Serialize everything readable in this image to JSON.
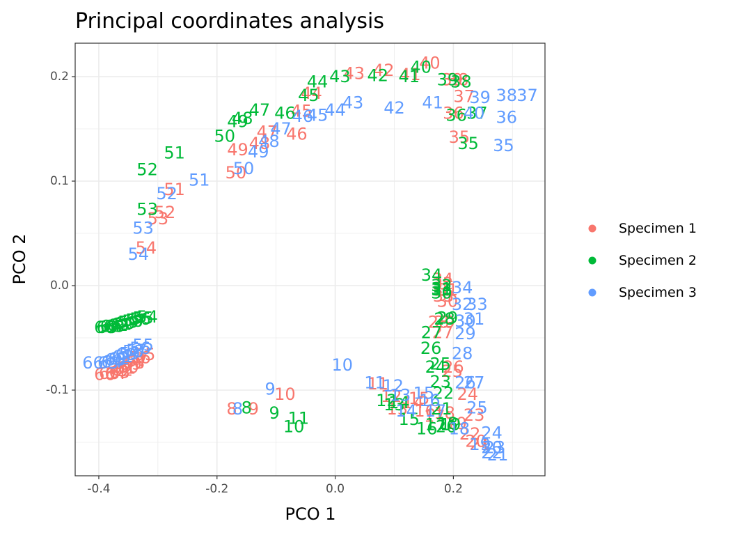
{
  "chart_data": {
    "type": "scatter",
    "marker": "text-label",
    "title": "Principal coordinates analysis",
    "xlabel": "PCO 1",
    "ylabel": "PCO 2",
    "xlim": [
      -0.44,
      0.355
    ],
    "ylim": [
      -0.182,
      0.232
    ],
    "x_ticks": [
      -0.4,
      -0.2,
      0.0,
      0.2
    ],
    "x_tick_labels": [
      "-0.4",
      "-0.2",
      "0.0",
      "0.2"
    ],
    "y_ticks": [
      -0.1,
      0.0,
      0.1,
      0.2
    ],
    "y_tick_labels": [
      "-0.1",
      "0.0",
      "0.1",
      "0.2"
    ],
    "grid": true,
    "legend_position": "right",
    "series": [
      {
        "name": "Specimen 1",
        "color": "#F8766D",
        "points": [
          {
            "label": "8",
            "x": -0.175,
            "y": -0.118
          },
          {
            "label": "9",
            "x": -0.138,
            "y": -0.118
          },
          {
            "label": "10",
            "x": -0.085,
            "y": -0.104
          },
          {
            "label": "11",
            "x": 0.072,
            "y": -0.094
          },
          {
            "label": "12",
            "x": 0.095,
            "y": -0.106
          },
          {
            "label": "13",
            "x": 0.105,
            "y": -0.118
          },
          {
            "label": "14",
            "x": 0.132,
            "y": -0.112
          },
          {
            "label": "15",
            "x": 0.142,
            "y": -0.108
          },
          {
            "label": "16",
            "x": 0.152,
            "y": -0.12
          },
          {
            "label": "17",
            "x": 0.168,
            "y": -0.125
          },
          {
            "label": "18",
            "x": 0.185,
            "y": -0.122
          },
          {
            "label": "19",
            "x": 0.205,
            "y": -0.132
          },
          {
            "label": "20",
            "x": 0.238,
            "y": -0.149
          },
          {
            "label": "21",
            "x": 0.245,
            "y": -0.152
          },
          {
            "label": "22",
            "x": 0.228,
            "y": -0.142
          },
          {
            "label": "23",
            "x": 0.235,
            "y": -0.124
          },
          {
            "label": "24",
            "x": 0.224,
            "y": -0.104
          },
          {
            "label": "25",
            "x": 0.198,
            "y": -0.082
          },
          {
            "label": "26",
            "x": 0.2,
            "y": -0.078
          },
          {
            "label": "27",
            "x": 0.182,
            "y": -0.045
          },
          {
            "label": "28",
            "x": 0.175,
            "y": -0.035
          },
          {
            "label": "29",
            "x": 0.185,
            "y": -0.035
          },
          {
            "label": "30",
            "x": 0.19,
            "y": -0.015
          },
          {
            "label": "31",
            "x": 0.19,
            "y": -0.004
          },
          {
            "label": "32",
            "x": 0.182,
            "y": 0.002
          },
          {
            "label": "33",
            "x": 0.183,
            "y": -0.01
          },
          {
            "label": "34",
            "x": 0.182,
            "y": 0.006
          },
          {
            "label": "35",
            "x": 0.21,
            "y": 0.142
          },
          {
            "label": "36",
            "x": 0.2,
            "y": 0.165
          },
          {
            "label": "37",
            "x": 0.218,
            "y": 0.181
          },
          {
            "label": "38",
            "x": 0.208,
            "y": 0.197
          },
          {
            "label": "39",
            "x": 0.198,
            "y": 0.197
          },
          {
            "label": "40",
            "x": 0.16,
            "y": 0.213
          },
          {
            "label": "41",
            "x": 0.127,
            "y": 0.202
          },
          {
            "label": "42",
            "x": 0.082,
            "y": 0.206
          },
          {
            "label": "43",
            "x": 0.032,
            "y": 0.203
          },
          {
            "label": "44",
            "x": -0.04,
            "y": 0.184
          },
          {
            "label": "45",
            "x": -0.057,
            "y": 0.167
          },
          {
            "label": "46",
            "x": -0.065,
            "y": 0.145
          },
          {
            "label": "47",
            "x": -0.115,
            "y": 0.147
          },
          {
            "label": "48",
            "x": -0.128,
            "y": 0.136
          },
          {
            "label": "49",
            "x": -0.165,
            "y": 0.13
          },
          {
            "label": "50",
            "x": -0.168,
            "y": 0.108
          },
          {
            "label": "51",
            "x": -0.272,
            "y": 0.092
          },
          {
            "label": "52",
            "x": -0.288,
            "y": 0.07
          },
          {
            "label": "53",
            "x": -0.3,
            "y": 0.064
          },
          {
            "label": "54",
            "x": -0.32,
            "y": 0.036
          },
          {
            "label": "55",
            "x": -0.322,
            "y": -0.066
          },
          {
            "label": "56",
            "x": -0.33,
            "y": -0.069
          },
          {
            "label": "57",
            "x": -0.335,
            "y": -0.072
          },
          {
            "label": "58",
            "x": -0.34,
            "y": -0.074
          },
          {
            "label": "59",
            "x": -0.345,
            "y": -0.075
          },
          {
            "label": "60",
            "x": -0.35,
            "y": -0.078
          },
          {
            "label": "61",
            "x": -0.355,
            "y": -0.079
          },
          {
            "label": "62",
            "x": -0.36,
            "y": -0.081
          },
          {
            "label": "63",
            "x": -0.365,
            "y": -0.083
          },
          {
            "label": "64",
            "x": -0.372,
            "y": -0.084
          },
          {
            "label": "65",
            "x": -0.382,
            "y": -0.084
          },
          {
            "label": "66",
            "x": -0.39,
            "y": -0.085
          }
        ]
      },
      {
        "name": "Specimen 2",
        "color": "#00BA38",
        "points": [
          {
            "label": "8",
            "x": -0.15,
            "y": -0.117
          },
          {
            "label": "9",
            "x": -0.103,
            "y": -0.122
          },
          {
            "label": "10",
            "x": -0.07,
            "y": -0.135
          },
          {
            "label": "11",
            "x": -0.062,
            "y": -0.127
          },
          {
            "label": "12",
            "x": 0.087,
            "y": -0.11
          },
          {
            "label": "13",
            "x": 0.1,
            "y": -0.114
          },
          {
            "label": "14",
            "x": 0.108,
            "y": -0.112
          },
          {
            "label": "15",
            "x": 0.125,
            "y": -0.128
          },
          {
            "label": "16",
            "x": 0.155,
            "y": -0.137
          },
          {
            "label": "17",
            "x": 0.17,
            "y": -0.133
          },
          {
            "label": "18",
            "x": 0.19,
            "y": -0.132
          },
          {
            "label": "19",
            "x": 0.195,
            "y": -0.133
          },
          {
            "label": "20",
            "x": 0.188,
            "y": -0.135
          },
          {
            "label": "21",
            "x": 0.18,
            "y": -0.118
          },
          {
            "label": "22",
            "x": 0.183,
            "y": -0.103
          },
          {
            "label": "23",
            "x": 0.178,
            "y": -0.092
          },
          {
            "label": "24",
            "x": 0.17,
            "y": -0.078
          },
          {
            "label": "25",
            "x": 0.178,
            "y": -0.075
          },
          {
            "label": "26",
            "x": 0.162,
            "y": -0.06
          },
          {
            "label": "27",
            "x": 0.163,
            "y": -0.045
          },
          {
            "label": "28",
            "x": 0.185,
            "y": -0.032
          },
          {
            "label": "29",
            "x": 0.19,
            "y": -0.031
          },
          {
            "label": "30",
            "x": 0.18,
            "y": -0.007
          },
          {
            "label": "31",
            "x": 0.18,
            "y": -0.003
          },
          {
            "label": "32",
            "x": 0.18,
            "y": 0.0
          },
          {
            "label": "33",
            "x": 0.18,
            "y": -0.004
          },
          {
            "label": "34",
            "x": 0.163,
            "y": 0.01
          },
          {
            "label": "35",
            "x": 0.225,
            "y": 0.136
          },
          {
            "label": "36",
            "x": 0.205,
            "y": 0.163
          },
          {
            "label": "37",
            "x": 0.24,
            "y": 0.165
          },
          {
            "label": "38",
            "x": 0.213,
            "y": 0.195
          },
          {
            "label": "39",
            "x": 0.19,
            "y": 0.197
          },
          {
            "label": "40",
            "x": 0.145,
            "y": 0.209
          },
          {
            "label": "41",
            "x": 0.125,
            "y": 0.2
          },
          {
            "label": "42",
            "x": 0.072,
            "y": 0.201
          },
          {
            "label": "43",
            "x": 0.008,
            "y": 0.2
          },
          {
            "label": "44",
            "x": -0.03,
            "y": 0.195
          },
          {
            "label": "45",
            "x": -0.045,
            "y": 0.182
          },
          {
            "label": "46",
            "x": -0.085,
            "y": 0.165
          },
          {
            "label": "47",
            "x": -0.128,
            "y": 0.168
          },
          {
            "label": "48",
            "x": -0.157,
            "y": 0.16
          },
          {
            "label": "49",
            "x": -0.165,
            "y": 0.157
          },
          {
            "label": "50",
            "x": -0.187,
            "y": 0.143
          },
          {
            "label": "51",
            "x": -0.272,
            "y": 0.127
          },
          {
            "label": "52",
            "x": -0.318,
            "y": 0.111
          },
          {
            "label": "53",
            "x": -0.318,
            "y": 0.073
          },
          {
            "label": "54",
            "x": -0.318,
            "y": -0.03
          },
          {
            "label": "55",
            "x": -0.325,
            "y": -0.031
          },
          {
            "label": "56",
            "x": -0.33,
            "y": -0.032
          },
          {
            "label": "57",
            "x": -0.337,
            "y": -0.033
          },
          {
            "label": "58",
            "x": -0.343,
            "y": -0.034
          },
          {
            "label": "59",
            "x": -0.35,
            "y": -0.035
          },
          {
            "label": "60",
            "x": -0.356,
            "y": -0.036
          },
          {
            "label": "61",
            "x": -0.362,
            "y": -0.037
          },
          {
            "label": "62",
            "x": -0.368,
            "y": -0.038
          },
          {
            "label": "63",
            "x": -0.374,
            "y": -0.039
          },
          {
            "label": "64",
            "x": -0.38,
            "y": -0.039
          },
          {
            "label": "65",
            "x": -0.386,
            "y": -0.04
          },
          {
            "label": "66",
            "x": -0.39,
            "y": -0.04
          }
        ]
      },
      {
        "name": "Specimen 3",
        "color": "#619CFF",
        "points": [
          {
            "label": "8",
            "x": -0.165,
            "y": -0.118
          },
          {
            "label": "9",
            "x": -0.11,
            "y": -0.099
          },
          {
            "label": "10",
            "x": 0.012,
            "y": -0.076
          },
          {
            "label": "11",
            "x": 0.067,
            "y": -0.093
          },
          {
            "label": "12",
            "x": 0.098,
            "y": -0.096
          },
          {
            "label": "13",
            "x": 0.11,
            "y": -0.105
          },
          {
            "label": "14",
            "x": 0.12,
            "y": -0.12
          },
          {
            "label": "15",
            "x": 0.15,
            "y": -0.103
          },
          {
            "label": "16",
            "x": 0.16,
            "y": -0.11
          },
          {
            "label": "17",
            "x": 0.17,
            "y": -0.12
          },
          {
            "label": "18",
            "x": 0.21,
            "y": -0.137
          },
          {
            "label": "19",
            "x": 0.245,
            "y": -0.152
          },
          {
            "label": "20",
            "x": 0.265,
            "y": -0.155
          },
          {
            "label": "21",
            "x": 0.275,
            "y": -0.162
          },
          {
            "label": "22",
            "x": 0.265,
            "y": -0.16
          },
          {
            "label": "23",
            "x": 0.27,
            "y": -0.155
          },
          {
            "label": "24",
            "x": 0.265,
            "y": -0.141
          },
          {
            "label": "25",
            "x": 0.24,
            "y": -0.117
          },
          {
            "label": "26",
            "x": 0.22,
            "y": -0.093
          },
          {
            "label": "27",
            "x": 0.235,
            "y": -0.093
          },
          {
            "label": "28",
            "x": 0.215,
            "y": -0.065
          },
          {
            "label": "29",
            "x": 0.22,
            "y": -0.046
          },
          {
            "label": "30",
            "x": 0.22,
            "y": -0.034
          },
          {
            "label": "31",
            "x": 0.235,
            "y": -0.032
          },
          {
            "label": "32",
            "x": 0.215,
            "y": -0.018
          },
          {
            "label": "33",
            "x": 0.24,
            "y": -0.018
          },
          {
            "label": "34",
            "x": 0.215,
            "y": -0.002
          },
          {
            "label": "35",
            "x": 0.285,
            "y": 0.134
          },
          {
            "label": "36",
            "x": 0.29,
            "y": 0.161
          },
          {
            "label": "37",
            "x": 0.325,
            "y": 0.182
          },
          {
            "label": "38",
            "x": 0.29,
            "y": 0.182
          },
          {
            "label": "39",
            "x": 0.245,
            "y": 0.18
          },
          {
            "label": "40",
            "x": 0.235,
            "y": 0.165
          },
          {
            "label": "41",
            "x": 0.165,
            "y": 0.175
          },
          {
            "label": "42",
            "x": 0.1,
            "y": 0.17
          },
          {
            "label": "43",
            "x": 0.03,
            "y": 0.175
          },
          {
            "label": "44",
            "x": 0.0,
            "y": 0.168
          },
          {
            "label": "45",
            "x": -0.03,
            "y": 0.163
          },
          {
            "label": "46",
            "x": -0.055,
            "y": 0.162
          },
          {
            "label": "47",
            "x": -0.092,
            "y": 0.15
          },
          {
            "label": "48",
            "x": -0.112,
            "y": 0.138
          },
          {
            "label": "49",
            "x": -0.13,
            "y": 0.128
          },
          {
            "label": "50",
            "x": -0.155,
            "y": 0.112
          },
          {
            "label": "51",
            "x": -0.23,
            "y": 0.101
          },
          {
            "label": "52",
            "x": -0.285,
            "y": 0.088
          },
          {
            "label": "53",
            "x": -0.325,
            "y": 0.055
          },
          {
            "label": "54",
            "x": -0.333,
            "y": 0.03
          },
          {
            "label": "55",
            "x": -0.325,
            "y": -0.057
          },
          {
            "label": "56",
            "x": -0.33,
            "y": -0.06
          },
          {
            "label": "57",
            "x": -0.336,
            "y": -0.062
          },
          {
            "label": "58",
            "x": -0.342,
            "y": -0.063
          },
          {
            "label": "59",
            "x": -0.348,
            "y": -0.065
          },
          {
            "label": "60",
            "x": -0.354,
            "y": -0.066
          },
          {
            "label": "61",
            "x": -0.36,
            "y": -0.068
          },
          {
            "label": "62",
            "x": -0.366,
            "y": -0.07
          },
          {
            "label": "63",
            "x": -0.372,
            "y": -0.071
          },
          {
            "label": "64",
            "x": -0.378,
            "y": -0.073
          },
          {
            "label": "65",
            "x": -0.384,
            "y": -0.074
          },
          {
            "label": "66",
            "x": -0.41,
            "y": -0.074
          }
        ]
      }
    ]
  }
}
